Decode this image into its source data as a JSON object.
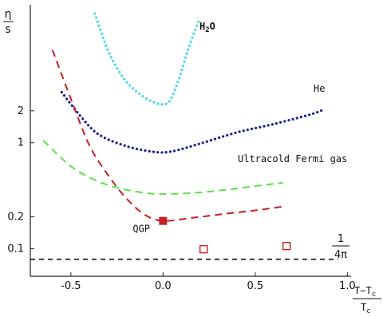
{
  "chart_data": {
    "type": "line",
    "title": "",
    "xlabel": {
      "numerator": "T−T",
      "numerator_sub": "c",
      "denominator": "T",
      "denominator_sub": "c"
    },
    "ylabel": {
      "numerator": "η",
      "denominator": "s"
    },
    "xlim": [
      -0.72,
      1.02
    ],
    "ylim_log": [
      0.055,
      20
    ],
    "x_ticks": [
      {
        "value": -0.5,
        "label": "-0.5"
      },
      {
        "value": 0.0,
        "label": "0.0"
      },
      {
        "value": 0.5,
        "label": "0.5"
      },
      {
        "value": 1.0,
        "label": "1.0"
      }
    ],
    "y_ticks": [
      {
        "value": 0.1,
        "label": "0.1"
      },
      {
        "value": 0.2,
        "label": "0.2"
      },
      {
        "value": 1,
        "label": "1"
      },
      {
        "value": 2,
        "label": "2"
      }
    ],
    "series": [
      {
        "name": "H2O",
        "label_main": "H",
        "label_sub": "2",
        "label_tail": "O",
        "color": "#4fd7e6",
        "style": "dotted",
        "points": [
          [
            -0.37,
            16.5
          ],
          [
            -0.3,
            7.5
          ],
          [
            -0.22,
            4.2
          ],
          [
            -0.14,
            3.0
          ],
          [
            -0.06,
            2.45
          ],
          [
            0.0,
            2.3
          ],
          [
            0.04,
            2.55
          ],
          [
            0.09,
            4.2
          ],
          [
            0.14,
            8.0
          ],
          [
            0.2,
            15.0
          ]
        ]
      },
      {
        "name": "He",
        "color": "#1b1f8f",
        "style": "dotted",
        "points": [
          [
            -0.55,
            3.0
          ],
          [
            -0.45,
            1.8
          ],
          [
            -0.35,
            1.2
          ],
          [
            -0.2,
            0.93
          ],
          [
            -0.05,
            0.82
          ],
          [
            0.05,
            0.83
          ],
          [
            0.2,
            0.98
          ],
          [
            0.4,
            1.25
          ],
          [
            0.6,
            1.5
          ],
          [
            0.8,
            1.85
          ],
          [
            0.87,
            2.05
          ]
        ]
      },
      {
        "name": "Ultracold Fermi gas",
        "color": "#5ce04a",
        "style": "dashed",
        "points": [
          [
            -0.65,
            1.05
          ],
          [
            -0.5,
            0.6
          ],
          [
            -0.35,
            0.43
          ],
          [
            -0.2,
            0.36
          ],
          [
            -0.05,
            0.33
          ],
          [
            0.05,
            0.33
          ],
          [
            0.2,
            0.34
          ],
          [
            0.4,
            0.37
          ],
          [
            0.5,
            0.39
          ],
          [
            0.65,
            0.42
          ]
        ]
      },
      {
        "name": "QGP",
        "color": "#c42020",
        "style": "dashed",
        "points": [
          [
            -0.6,
            7.5
          ],
          [
            -0.5,
            2.6
          ],
          [
            -0.4,
            0.95
          ],
          [
            -0.3,
            0.5
          ],
          [
            -0.2,
            0.3
          ],
          [
            -0.1,
            0.21
          ],
          [
            0.0,
            0.183
          ],
          [
            0.15,
            0.195
          ],
          [
            0.35,
            0.215
          ],
          [
            0.5,
            0.23
          ],
          [
            0.65,
            0.25
          ]
        ]
      },
      {
        "name": "1/4π",
        "label_numerator": "1",
        "label_denominator": "4π",
        "color": "#111111",
        "style": "dashed",
        "points": [
          [
            -0.72,
            0.0796
          ],
          [
            0.95,
            0.0796
          ]
        ]
      }
    ],
    "markers": [
      {
        "name": "QGP point",
        "label": "QGP",
        "x": 0.0,
        "y": 0.183,
        "shape": "filled-square",
        "color": "#c42020"
      },
      {
        "name": "open square 1",
        "x": 0.22,
        "y": 0.099,
        "shape": "open-square",
        "color": "#c42020"
      },
      {
        "name": "open square 2",
        "x": 0.67,
        "y": 0.106,
        "shape": "open-square",
        "color": "#c42020"
      }
    ],
    "grid": false
  }
}
